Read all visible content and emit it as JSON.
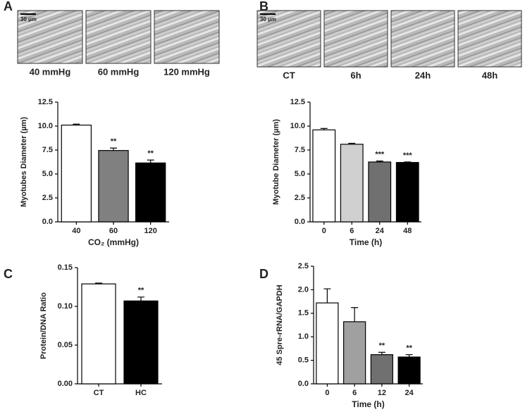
{
  "chart_data": [
    {
      "type": "bar",
      "panel_label": "A",
      "scale_bar": "30 µm",
      "images": [
        "40 mmHg",
        "60 mmHg",
        "120 mmHg"
      ],
      "ylabel": "Myotubes Diameter (µm)",
      "xlabel": "CO₂ (mmHg)",
      "categories": [
        "40",
        "60",
        "120"
      ],
      "values": [
        10.1,
        7.45,
        6.15
      ],
      "errors": [
        0.1,
        0.25,
        0.3
      ],
      "colors": [
        "#ffffff",
        "#808080",
        "#000000"
      ],
      "annotations": [
        null,
        "**",
        "**"
      ],
      "ylim": [
        0,
        12.5
      ],
      "yticks": [
        {
          "value": 0,
          "label": "0.0"
        },
        2.5,
        {
          "value": 5,
          "label": "5.0"
        },
        7.5,
        {
          "value": 10,
          "label": "10.0"
        },
        12.5
      ]
    },
    {
      "type": "bar",
      "panel_label": "B",
      "scale_bar": "30 µm",
      "images": [
        "CT",
        "6h",
        "24h",
        "48h"
      ],
      "ylabel": "Myotube Diameter (µm)",
      "xlabel": "Time (h)",
      "categories": [
        "0",
        "6",
        "24",
        "48"
      ],
      "values": [
        9.6,
        8.1,
        6.25,
        6.2
      ],
      "errors": [
        0.15,
        0.1,
        0.1,
        0.05
      ],
      "colors": [
        "#ffffff",
        "#d0d0d0",
        "#707070",
        "#000000"
      ],
      "annotations": [
        null,
        null,
        "***",
        "***"
      ],
      "ylim": [
        0,
        12.5
      ],
      "yticks": [
        {
          "value": 0,
          "label": "0.0"
        },
        2.5,
        {
          "value": 5,
          "label": "5.0"
        },
        7.5,
        {
          "value": 10,
          "label": "10.0"
        },
        12.5
      ]
    },
    {
      "type": "bar",
      "panel_label": "C",
      "ylabel": "Protein/DNA Ratio",
      "categories": [
        "CT",
        "HC"
      ],
      "values": [
        0.129,
        0.107
      ],
      "errors": [
        0.001,
        0.005
      ],
      "colors": [
        "#ffffff",
        "#000000"
      ],
      "annotations": [
        null,
        "**"
      ],
      "ylim": [
        0,
        0.15
      ],
      "yticks": [
        {
          "value": 0,
          "label": "0.00"
        },
        0.05,
        {
          "value": 0.1,
          "label": "0.10"
        },
        0.15
      ]
    },
    {
      "type": "bar",
      "panel_label": "D",
      "ylabel": "45 Spre-rRNA/GAPDH",
      "xlabel": "Time (h)",
      "categories": [
        "0",
        "6",
        "12",
        "24"
      ],
      "values": [
        1.72,
        1.32,
        0.62,
        0.57
      ],
      "errors": [
        0.3,
        0.3,
        0.05,
        0.05
      ],
      "colors": [
        "#ffffff",
        "#a0a0a0",
        "#707070",
        "#000000"
      ],
      "annotations": [
        null,
        null,
        "**",
        "**"
      ],
      "ylim": [
        0,
        2.5
      ],
      "yticks": [
        {
          "value": 0,
          "label": "0.0"
        },
        0.5,
        {
          "value": 1,
          "label": "1.0"
        },
        1.5,
        {
          "value": 2,
          "label": "2.0"
        },
        2.5
      ]
    }
  ]
}
